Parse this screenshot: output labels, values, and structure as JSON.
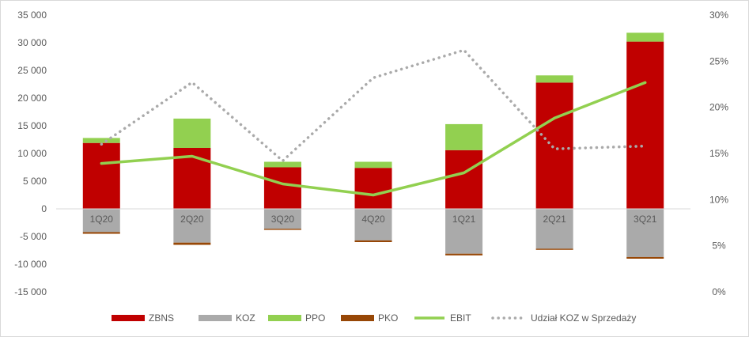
{
  "chart_data": {
    "type": "bar",
    "stacked": true,
    "categories": [
      "1Q20",
      "2Q20",
      "3Q20",
      "4Q20",
      "1Q21",
      "2Q21",
      "3Q21"
    ],
    "series": [
      {
        "name": "ZBNS",
        "kind": "bar",
        "axis": "left",
        "color": "#c00000",
        "values": [
          11900,
          11000,
          7500,
          7400,
          10600,
          22800,
          30200
        ]
      },
      {
        "name": "KOZ",
        "kind": "bar",
        "axis": "left",
        "color": "#aaaaaa",
        "values": [
          -4200,
          -6100,
          -3600,
          -5700,
          -8100,
          -7200,
          -8700
        ]
      },
      {
        "name": "PPO",
        "kind": "bar",
        "axis": "left",
        "color": "#92d050",
        "values": [
          900,
          5300,
          1000,
          1100,
          4700,
          1300,
          1600
        ]
      },
      {
        "name": "PKO",
        "kind": "bar",
        "axis": "left",
        "color": "#974706",
        "values": [
          -300,
          -400,
          -200,
          -300,
          -300,
          -200,
          -300
        ]
      },
      {
        "name": "EBIT",
        "kind": "line",
        "axis": "left",
        "color": "#92d050",
        "values": [
          8200,
          9500,
          4500,
          2500,
          6500,
          16400,
          22800
        ]
      },
      {
        "name": "Udział KOZ w Sprzedaży",
        "kind": "dotted-line",
        "axis": "right",
        "color": "#aaaaaa",
        "values": [
          0.16,
          0.227,
          0.142,
          0.232,
          0.262,
          0.155,
          0.158
        ]
      }
    ],
    "yleft": {
      "min": -15000,
      "max": 35000,
      "step": 5000,
      "ticks": [
        "-15 000",
        "-10 000",
        "-5 000",
        "0",
        "5 000",
        "10 000",
        "15 000",
        "20 000",
        "25 000",
        "30 000",
        "35 000"
      ]
    },
    "yright": {
      "min": 0,
      "max": 0.3,
      "step": 0.05,
      "ticks": [
        "0%",
        "5%",
        "10%",
        "15%",
        "20%",
        "25%",
        "30%"
      ]
    },
    "grid": false,
    "legend_position": "bottom"
  }
}
